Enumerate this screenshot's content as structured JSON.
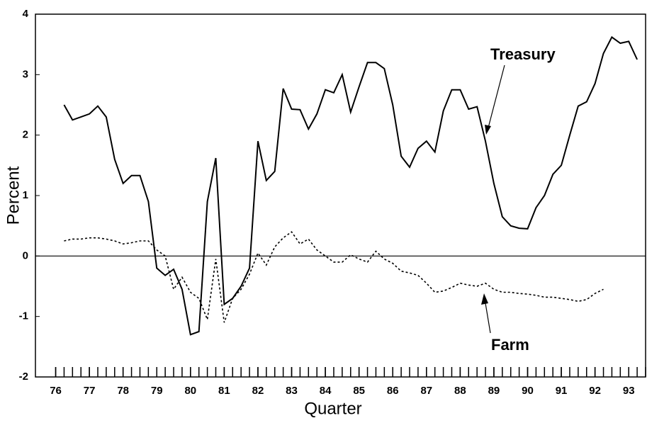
{
  "chart_data": {
    "type": "line",
    "xlabel": "Quarter",
    "ylabel": "Percent",
    "annotations": [
      "Treasury",
      "Farm"
    ],
    "x": [
      76.25,
      76.5,
      76.75,
      77,
      77.25,
      77.5,
      77.75,
      78,
      78.25,
      78.5,
      78.75,
      79,
      79.25,
      79.5,
      79.75,
      80,
      80.25,
      80.5,
      80.75,
      81,
      81.25,
      81.5,
      81.75,
      82,
      82.25,
      82.5,
      82.75,
      83,
      83.25,
      83.5,
      83.75,
      84,
      84.25,
      84.5,
      84.75,
      85,
      85.25,
      85.5,
      85.75,
      86,
      86.25,
      86.5,
      86.75,
      87,
      87.25,
      87.5,
      87.75,
      88,
      88.25,
      88.5,
      88.75,
      89,
      89.25,
      89.5,
      89.75,
      90,
      90.25,
      90.5,
      90.75,
      91,
      91.25,
      91.5,
      91.75,
      92,
      92.25,
      92.5,
      92.75,
      93,
      93.25
    ],
    "series": [
      {
        "name": "Treasury",
        "color": "#000000",
        "dashed": false,
        "values": [
          2.5,
          2.25,
          2.3,
          2.35,
          2.48,
          2.3,
          1.6,
          1.2,
          1.33,
          1.33,
          0.9,
          -0.2,
          -0.32,
          -0.22,
          -0.55,
          -1.3,
          -1.25,
          0.9,
          1.62,
          -0.8,
          -0.7,
          -0.5,
          -0.2,
          1.9,
          1.25,
          1.4,
          2.77,
          2.43,
          2.42,
          2.1,
          2.35,
          2.75,
          2.7,
          3.0,
          2.38,
          2.8,
          3.2,
          3.2,
          3.1,
          2.5,
          1.65,
          1.47,
          1.78,
          1.9,
          1.72,
          2.4,
          2.75,
          2.75,
          2.43,
          2.47,
          1.9,
          1.2,
          0.65,
          0.5,
          0.46,
          0.45,
          0.8,
          1.0,
          1.35,
          1.5,
          2.0,
          2.48,
          2.55,
          2.85,
          3.35,
          3.62,
          3.52,
          3.55,
          3.25
        ]
      },
      {
        "name": "Farm",
        "color": "#000000",
        "dashed": true,
        "values": [
          0.25,
          0.28,
          0.28,
          0.3,
          0.3,
          0.28,
          0.25,
          0.2,
          0.22,
          0.25,
          0.25,
          0.1,
          0.0,
          -0.55,
          -0.35,
          -0.6,
          -0.7,
          -1.05,
          -0.05,
          -1.1,
          -0.7,
          -0.55,
          -0.3,
          0.05,
          -0.15,
          0.15,
          0.3,
          0.4,
          0.2,
          0.28,
          0.1,
          0.0,
          -0.1,
          -0.1,
          0.02,
          -0.05,
          -0.1,
          0.08,
          -0.05,
          -0.12,
          -0.25,
          -0.28,
          -0.32,
          -0.45,
          -0.6,
          -0.58,
          -0.52,
          -0.45,
          -0.48,
          -0.5,
          -0.45,
          -0.55,
          -0.6,
          -0.6,
          -0.62,
          -0.63,
          -0.65,
          -0.68,
          -0.68,
          -0.7,
          -0.72,
          -0.75,
          -0.72,
          -0.62,
          -0.55,
          null,
          null,
          null,
          null
        ]
      }
    ],
    "xlim": [
      75.4,
      93.5
    ],
    "xticks": [
      76,
      77,
      78,
      79,
      80,
      81,
      82,
      83,
      84,
      85,
      86,
      87,
      88,
      89,
      90,
      91,
      92,
      93
    ],
    "minor_ticks_per_major": 4,
    "ylim": [
      -2,
      4
    ],
    "yticks": [
      -2,
      -1,
      0,
      1,
      2,
      3,
      4
    ],
    "zero_line": true,
    "grid": false,
    "legend": false
  }
}
